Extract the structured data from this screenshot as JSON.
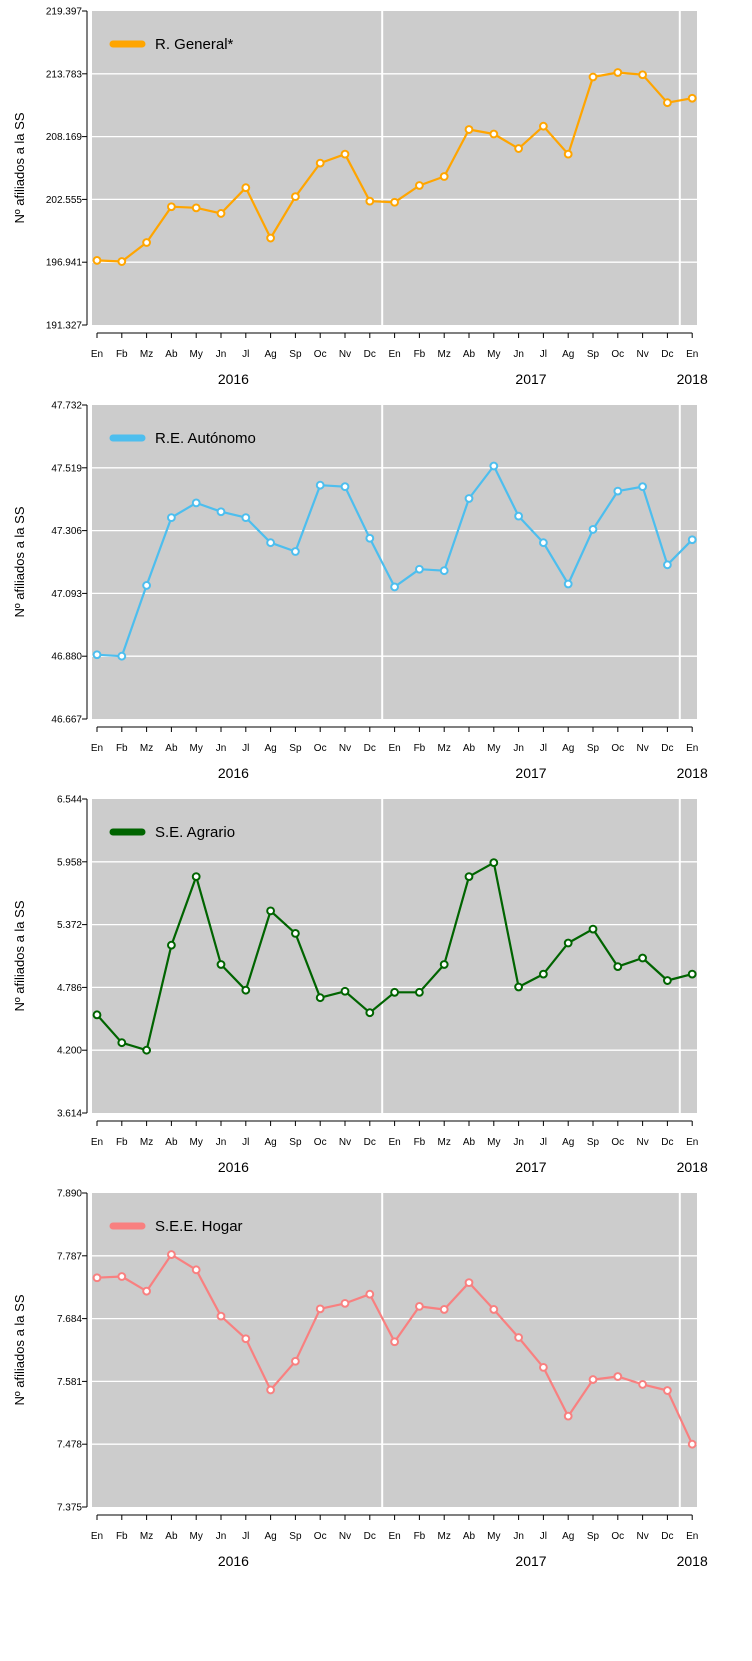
{
  "chart_data": [
    {
      "type": "line",
      "ylabel": "Nº afiliados a la SS",
      "categories": [
        "En",
        "Fb",
        "Mz",
        "Ab",
        "My",
        "Jn",
        "Jl",
        "Ag",
        "Sp",
        "Oc",
        "Nv",
        "Dc",
        "En",
        "Fb",
        "Mz",
        "Ab",
        "My",
        "Jn",
        "Jl",
        "Ag",
        "Sp",
        "Oc",
        "Nv",
        "Dc",
        "En"
      ],
      "years": [
        {
          "label": "2016",
          "at_index": 5.5
        },
        {
          "label": "2017",
          "at_index": 17.5
        },
        {
          "label": "2018",
          "at_index": 24
        }
      ],
      "year_separators_after_index": [
        11,
        23
      ],
      "ylim": [
        191.327,
        219.397
      ],
      "yticks": [
        191.327,
        196.941,
        202.555,
        208.169,
        213.783,
        219.397
      ],
      "ytick_labels": [
        "191.327",
        "196.941",
        "202.555",
        "208.169",
        "213.783",
        "219.397"
      ],
      "legend_position": "top-left",
      "grid": true,
      "series": [
        {
          "name": "R. General*",
          "color": "#FFA500",
          "values": [
            197.1,
            197.0,
            198.7,
            201.9,
            201.8,
            201.3,
            203.6,
            199.1,
            202.8,
            205.8,
            206.6,
            202.4,
            202.3,
            203.8,
            204.6,
            208.8,
            208.4,
            207.1,
            209.1,
            206.6,
            213.5,
            213.9,
            213.7,
            211.2,
            211.6
          ]
        }
      ]
    },
    {
      "type": "line",
      "ylabel": "Nº afiliados a la SS",
      "categories": [
        "En",
        "Fb",
        "Mz",
        "Ab",
        "My",
        "Jn",
        "Jl",
        "Ag",
        "Sp",
        "Oc",
        "Nv",
        "Dc",
        "En",
        "Fb",
        "Mz",
        "Ab",
        "My",
        "Jn",
        "Jl",
        "Ag",
        "Sp",
        "Oc",
        "Nv",
        "Dc",
        "En"
      ],
      "years": [
        {
          "label": "2016",
          "at_index": 5.5
        },
        {
          "label": "2017",
          "at_index": 17.5
        },
        {
          "label": "2018",
          "at_index": 24
        }
      ],
      "year_separators_after_index": [
        11,
        23
      ],
      "ylim": [
        46.667,
        47.732
      ],
      "yticks": [
        46.667,
        46.88,
        47.093,
        47.306,
        47.519,
        47.732
      ],
      "ytick_labels": [
        "46.667",
        "46.880",
        "47.093",
        "47.306",
        "47.519",
        "47.732"
      ],
      "legend_position": "top-left",
      "grid": true,
      "series": [
        {
          "name": "R.E. Autónomo",
          "color": "#4DBEEE",
          "values": [
            46.885,
            46.88,
            47.12,
            47.35,
            47.4,
            47.37,
            47.35,
            47.265,
            47.235,
            47.46,
            47.455,
            47.28,
            47.115,
            47.175,
            47.17,
            47.415,
            47.525,
            47.355,
            47.265,
            47.125,
            47.31,
            47.44,
            47.455,
            47.19,
            47.275
          ]
        }
      ]
    },
    {
      "type": "line",
      "ylabel": "Nº afiliados a la SS",
      "categories": [
        "En",
        "Fb",
        "Mz",
        "Ab",
        "My",
        "Jn",
        "Jl",
        "Ag",
        "Sp",
        "Oc",
        "Nv",
        "Dc",
        "En",
        "Fb",
        "Mz",
        "Ab",
        "My",
        "Jn",
        "Jl",
        "Ag",
        "Sp",
        "Oc",
        "Nv",
        "Dc",
        "En"
      ],
      "years": [
        {
          "label": "2016",
          "at_index": 5.5
        },
        {
          "label": "2017",
          "at_index": 17.5
        },
        {
          "label": "2018",
          "at_index": 24
        }
      ],
      "year_separators_after_index": [
        11,
        23
      ],
      "ylim": [
        3.614,
        6.544
      ],
      "yticks": [
        3.614,
        4.2,
        4.786,
        5.372,
        5.958,
        6.544
      ],
      "ytick_labels": [
        "3.614",
        "4.200",
        "4.786",
        "5.372",
        "5.958",
        "6.544"
      ],
      "legend_position": "top-left",
      "grid": true,
      "series": [
        {
          "name": "S.E. Agrario",
          "color": "#006400",
          "values": [
            4.53,
            4.27,
            4.2,
            5.18,
            5.82,
            5.0,
            4.76,
            5.5,
            5.29,
            4.69,
            4.75,
            4.55,
            4.74,
            4.74,
            5.0,
            5.82,
            5.95,
            4.79,
            4.91,
            5.2,
            5.33,
            4.98,
            5.06,
            4.85,
            4.91
          ]
        }
      ]
    },
    {
      "type": "line",
      "ylabel": "Nº afiliados a la SS",
      "categories": [
        "En",
        "Fb",
        "Mz",
        "Ab",
        "My",
        "Jn",
        "Jl",
        "Ag",
        "Sp",
        "Oc",
        "Nv",
        "Dc",
        "En",
        "Fb",
        "Mz",
        "Ab",
        "My",
        "Jn",
        "Jl",
        "Ag",
        "Sp",
        "Oc",
        "Nv",
        "Dc",
        "En"
      ],
      "years": [
        {
          "label": "2016",
          "at_index": 5.5
        },
        {
          "label": "2017",
          "at_index": 17.5
        },
        {
          "label": "2018",
          "at_index": 24
        }
      ],
      "year_separators_after_index": [
        11,
        23
      ],
      "ylim": [
        7.375,
        7.89
      ],
      "yticks": [
        7.375,
        7.478,
        7.581,
        7.684,
        7.787,
        7.89
      ],
      "ytick_labels": [
        "7.375",
        "7.478",
        "7.581",
        "7.684",
        "7.787",
        "7.890"
      ],
      "legend_position": "top-left",
      "grid": true,
      "series": [
        {
          "name": "S.E.E. Hogar",
          "color": "#F88080",
          "values": [
            7.751,
            7.753,
            7.729,
            7.789,
            7.764,
            7.688,
            7.651,
            7.567,
            7.614,
            7.7,
            7.709,
            7.724,
            7.646,
            7.704,
            7.699,
            7.743,
            7.699,
            7.653,
            7.604,
            7.524,
            7.584,
            7.589,
            7.576,
            7.566,
            7.478
          ]
        }
      ]
    }
  ]
}
